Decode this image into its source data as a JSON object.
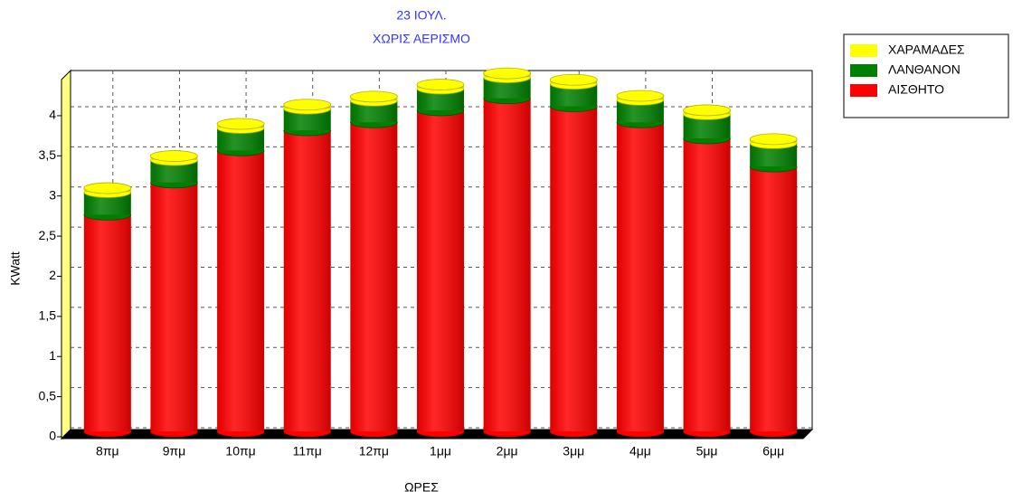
{
  "chart_data": {
    "type": "stacked-bar",
    "title": "23 ΙΟΥΛ.",
    "subtitle": "ΧΩΡΙΣ ΑΕΡΙΣΜΟ",
    "x_label": "ΩΡΕΣ",
    "y_label": "KWatt",
    "categories": [
      "8πμ",
      "9πμ",
      "10πμ",
      "11πμ",
      "12πμ",
      "1μμ",
      "2μμ",
      "3μμ",
      "4μμ",
      "5μμ",
      "6μμ"
    ],
    "series": [
      {
        "name": "ΑΙΣΘΗΤΟ",
        "color": "#ff0000",
        "values": [
          2.7,
          3.1,
          3.5,
          3.75,
          3.85,
          4.0,
          4.15,
          4.05,
          3.85,
          3.65,
          3.3
        ]
      },
      {
        "name": "ΛΑΝΘΑΝΟΝ",
        "color": "#008000",
        "values": [
          0.28,
          0.28,
          0.28,
          0.27,
          0.27,
          0.27,
          0.26,
          0.28,
          0.28,
          0.3,
          0.29
        ]
      },
      {
        "name": "ΧΑΡΑΜΑΔΕΣ",
        "color": "#ffff00",
        "values": [
          0.05,
          0.05,
          0.05,
          0.05,
          0.05,
          0.05,
          0.05,
          0.05,
          0.05,
          0.05,
          0.05
        ]
      }
    ],
    "ylim": [
      0,
      4.45
    ],
    "yticks": [
      0,
      {
        "value": 0.5,
        "label": "0,5"
      },
      1,
      {
        "value": 1.5,
        "label": "1,5"
      },
      2,
      {
        "value": 2.5,
        "label": "2,5"
      },
      3,
      {
        "value": 3.5,
        "label": "3,5"
      },
      4
    ],
    "grid": true,
    "legend": "right"
  }
}
